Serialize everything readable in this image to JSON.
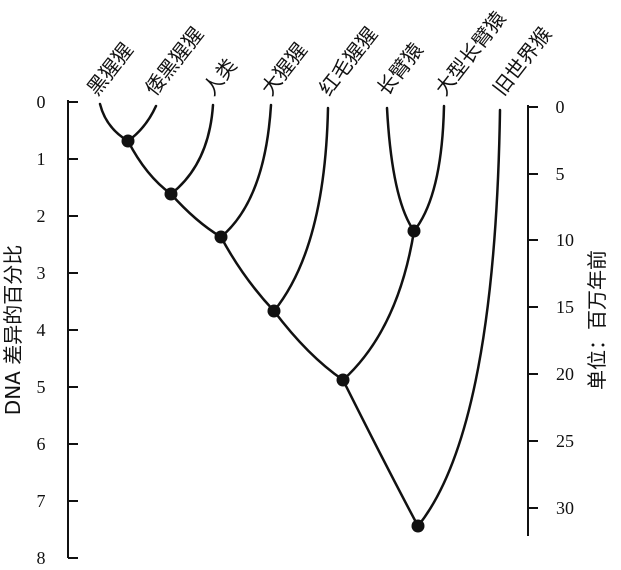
{
  "diagram": {
    "species": [
      {
        "id": "chimp",
        "label": "黑猩猩"
      },
      {
        "id": "bonobo",
        "label": "倭黑猩猩"
      },
      {
        "id": "human",
        "label": "人类"
      },
      {
        "id": "gorilla",
        "label": "大猩猩"
      },
      {
        "id": "orangutan",
        "label": "红毛猩猩"
      },
      {
        "id": "gibbon",
        "label": "长臂猿"
      },
      {
        "id": "siamang",
        "label": "大型长臂猿"
      },
      {
        "id": "old_world_monkey",
        "label": "旧世界猴"
      }
    ],
    "left_axis": {
      "title": "DNA 差异的百分比",
      "ticks": [
        "0",
        "1",
        "2",
        "3",
        "4",
        "5",
        "6",
        "7",
        "8"
      ]
    },
    "right_axis": {
      "title": "单位：百万年前",
      "ticks": [
        "0",
        "5",
        "10",
        "15",
        "20",
        "25",
        "30"
      ]
    },
    "divergence_nodes": [
      {
        "joins": [
          "chimp",
          "bonobo"
        ],
        "dna_difference_percent": 0.7
      },
      {
        "joins": [
          "chimp_bonobo",
          "human"
        ],
        "dna_difference_percent": 1.6
      },
      {
        "joins": [
          "chimp_bonobo_human",
          "gorilla"
        ],
        "dna_difference_percent": 2.3
      },
      {
        "joins": [
          "african_apes",
          "orangutan"
        ],
        "dna_difference_percent": 3.6
      },
      {
        "joins": [
          "gibbon",
          "siamang"
        ],
        "dna_difference_percent": 2.2
      },
      {
        "joins": [
          "great_apes",
          "lesser_apes"
        ],
        "dna_difference_percent": 4.8
      },
      {
        "joins": [
          "apes",
          "old_world_monkey"
        ],
        "dna_difference_percent": 7.3
      }
    ]
  }
}
